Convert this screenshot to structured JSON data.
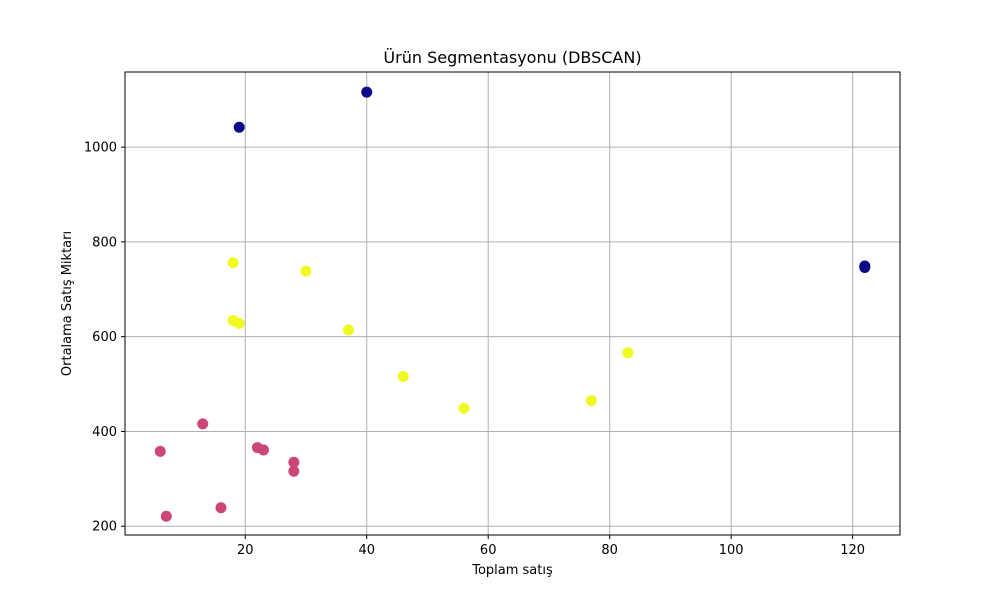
{
  "chart_data": {
    "type": "scatter",
    "title": "Ürün Segmentasyonu (DBSCAN)",
    "xlabel": "Toplam satış",
    "ylabel": "Ortalama Satış Miktarı",
    "xlim": [
      0.2,
      127.8
    ],
    "ylim": [
      181.5,
      1158.5
    ],
    "xticks": [
      20,
      40,
      60,
      80,
      100,
      120
    ],
    "yticks": [
      200,
      400,
      600,
      800,
      1000
    ],
    "grid": true,
    "series": [
      {
        "color": "#0d0887",
        "points": [
          [
            19,
            1042
          ],
          [
            40,
            1116
          ],
          [
            122,
            749
          ],
          [
            122,
            746
          ]
        ]
      },
      {
        "color": "#f0f921",
        "points": [
          [
            18,
            756
          ],
          [
            30,
            738
          ],
          [
            18,
            634
          ],
          [
            19,
            628
          ],
          [
            37,
            614
          ],
          [
            46,
            516
          ],
          [
            56,
            449
          ],
          [
            77,
            465
          ],
          [
            83,
            566
          ]
        ]
      },
      {
        "color": "#cc4778",
        "points": [
          [
            13,
            416
          ],
          [
            6,
            358
          ],
          [
            22,
            366
          ],
          [
            23,
            361
          ],
          [
            28,
            335
          ],
          [
            28,
            316
          ],
          [
            16,
            239
          ],
          [
            7,
            221
          ]
        ]
      }
    ]
  }
}
